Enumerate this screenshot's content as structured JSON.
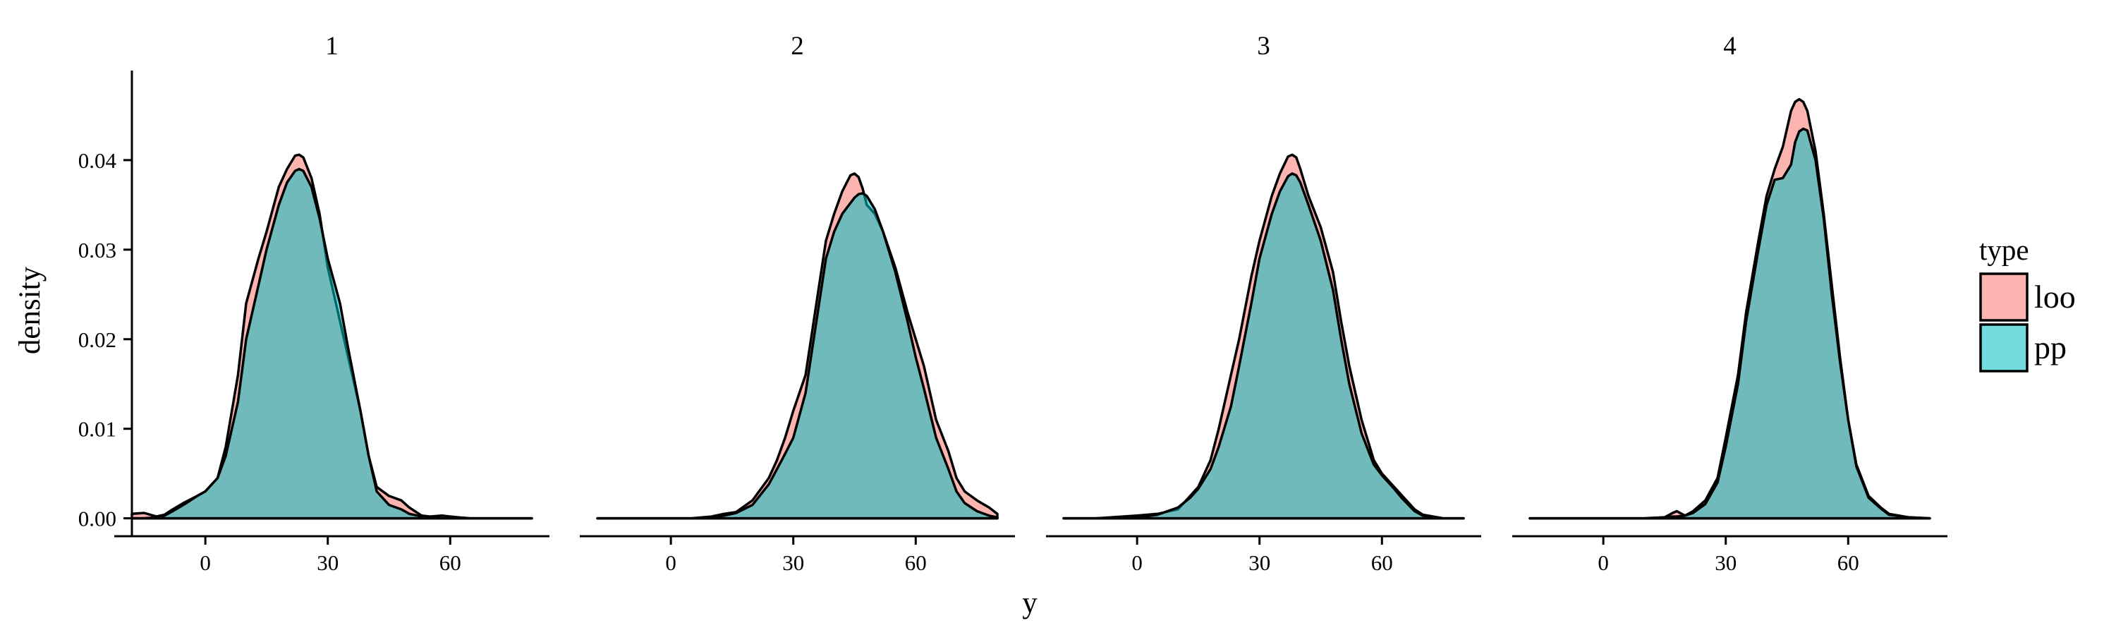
{
  "chart_data": {
    "type": "area",
    "title": "",
    "xlabel": "y",
    "ylabel": "density",
    "xlim": [
      -18,
      80
    ],
    "ylim": [
      -0.002,
      0.05
    ],
    "x_ticks": [
      0,
      30,
      60
    ],
    "y_ticks": [
      0.0,
      0.01,
      0.02,
      0.03,
      0.04
    ],
    "y_tick_labels": [
      "0.00",
      "0.01",
      "0.02",
      "0.03",
      "0.04"
    ],
    "grid": false,
    "legend": {
      "title": "type",
      "position": "right",
      "entries": [
        {
          "name": "loo",
          "color": "#F8766D"
        },
        {
          "name": "pp",
          "color": "#00BFC4"
        }
      ]
    },
    "fill_opacity": 0.55,
    "panels": [
      {
        "label": "1",
        "series": [
          {
            "name": "loo",
            "x": [
              -18,
              -15,
              -12,
              -10,
              -8,
              -5,
              -2,
              0,
              3,
              5,
              8,
              10,
              13,
              15,
              18,
              20,
              22,
              23,
              24,
              26,
              28,
              30,
              33,
              35,
              38,
              40,
              42,
              45,
              48,
              50,
              53,
              55,
              58,
              60,
              62,
              65,
              70,
              75,
              80
            ],
            "y": [
              0.0005,
              0.0006,
              0.0002,
              0.0004,
              0.001,
              0.0018,
              0.0025,
              0.003,
              0.0045,
              0.008,
              0.016,
              0.024,
              0.029,
              0.032,
              0.037,
              0.039,
              0.0405,
              0.0406,
              0.0403,
              0.038,
              0.034,
              0.028,
              0.022,
              0.018,
              0.012,
              0.007,
              0.0035,
              0.0025,
              0.002,
              0.0012,
              0.0003,
              0.0002,
              0.0003,
              0.0002,
              0.0001,
              0.0,
              0.0,
              0.0,
              0.0
            ]
          },
          {
            "name": "pp",
            "x": [
              -18,
              -15,
              -12,
              -10,
              -8,
              -5,
              -2,
              0,
              3,
              5,
              8,
              10,
              13,
              15,
              18,
              20,
              22,
              23,
              24,
              26,
              28,
              30,
              33,
              35,
              38,
              40,
              42,
              45,
              48,
              50,
              53,
              55,
              58,
              60,
              62,
              65,
              70,
              75,
              80
            ],
            "y": [
              0.0,
              0.0,
              0.0001,
              0.0003,
              0.0008,
              0.0016,
              0.0025,
              0.003,
              0.0045,
              0.007,
              0.013,
              0.02,
              0.026,
              0.03,
              0.035,
              0.0375,
              0.0388,
              0.039,
              0.0388,
              0.037,
              0.0335,
              0.029,
              0.024,
              0.019,
              0.012,
              0.007,
              0.003,
              0.0015,
              0.001,
              0.0005,
              0.0002,
              0.0001,
              0.0,
              0.0,
              0.0,
              0.0,
              0.0,
              0.0,
              0.0
            ]
          }
        ]
      },
      {
        "label": "2",
        "series": [
          {
            "name": "loo",
            "x": [
              -18,
              -10,
              0,
              5,
              10,
              13,
              16,
              20,
              24,
              26,
              28,
              30,
              33,
              36,
              38,
              40,
              42,
              44,
              45,
              46,
              47,
              48,
              50,
              52,
              55,
              58,
              60,
              62,
              65,
              68,
              70,
              72,
              75,
              78,
              80
            ],
            "y": [
              0.0,
              0.0,
              0.0,
              0.0,
              0.0002,
              0.0005,
              0.0007,
              0.002,
              0.0045,
              0.0065,
              0.009,
              0.012,
              0.016,
              0.025,
              0.031,
              0.034,
              0.0365,
              0.0383,
              0.0385,
              0.0381,
              0.0368,
              0.035,
              0.034,
              0.032,
              0.028,
              0.023,
              0.02,
              0.017,
              0.011,
              0.0075,
              0.0045,
              0.003,
              0.002,
              0.0012,
              0.0005
            ]
          },
          {
            "name": "pp",
            "x": [
              -18,
              -10,
              0,
              5,
              10,
              13,
              16,
              20,
              24,
              26,
              28,
              30,
              33,
              36,
              38,
              40,
              42,
              44,
              45,
              46,
              47,
              48,
              50,
              52,
              55,
              58,
              60,
              62,
              65,
              68,
              70,
              72,
              75,
              78,
              80
            ],
            "y": [
              0.0,
              0.0,
              0.0,
              0.0,
              0.0001,
              0.0003,
              0.0006,
              0.0015,
              0.0038,
              0.0055,
              0.0072,
              0.009,
              0.014,
              0.023,
              0.029,
              0.032,
              0.034,
              0.0352,
              0.0358,
              0.0362,
              0.0363,
              0.036,
              0.0345,
              0.032,
              0.0275,
              0.022,
              0.018,
              0.0145,
              0.009,
              0.0055,
              0.003,
              0.0017,
              0.0008,
              0.0003,
              0.0001
            ]
          }
        ]
      },
      {
        "label": "3",
        "series": [
          {
            "name": "loo",
            "x": [
              -18,
              -10,
              0,
              5,
              10,
              13,
              15,
              18,
              20,
              23,
              25,
              28,
              30,
              33,
              35,
              37,
              38,
              39,
              40,
              42,
              45,
              48,
              50,
              52,
              55,
              58,
              60,
              63,
              65,
              68,
              70,
              75,
              80
            ],
            "y": [
              0.0,
              0.0,
              0.0003,
              0.0005,
              0.001,
              0.0025,
              0.0035,
              0.0065,
              0.01,
              0.016,
              0.02,
              0.027,
              0.031,
              0.036,
              0.0385,
              0.0404,
              0.0406,
              0.0403,
              0.039,
              0.036,
              0.0325,
              0.0275,
              0.022,
              0.017,
              0.011,
              0.0065,
              0.005,
              0.0035,
              0.0025,
              0.001,
              0.0004,
              0.0,
              0.0
            ]
          },
          {
            "name": "pp",
            "x": [
              -18,
              -10,
              0,
              5,
              10,
              13,
              15,
              18,
              20,
              23,
              25,
              28,
              30,
              33,
              35,
              37,
              38,
              39,
              40,
              42,
              45,
              48,
              50,
              52,
              55,
              58,
              60,
              63,
              65,
              68,
              70,
              75,
              80
            ],
            "y": [
              0.0,
              0.0,
              0.0001,
              0.0004,
              0.0012,
              0.0023,
              0.0033,
              0.0055,
              0.008,
              0.0125,
              0.017,
              0.024,
              0.029,
              0.034,
              0.0365,
              0.0382,
              0.0385,
              0.0383,
              0.0375,
              0.035,
              0.031,
              0.0255,
              0.02,
              0.015,
              0.0095,
              0.006,
              0.0048,
              0.0033,
              0.0022,
              0.0008,
              0.0003,
              0.0,
              0.0
            ]
          }
        ]
      },
      {
        "label": "4",
        "series": [
          {
            "name": "loo",
            "x": [
              -18,
              -5,
              5,
              10,
              15,
              17,
              18,
              20,
              22,
              25,
              28,
              30,
              33,
              35,
              38,
              40,
              42,
              44,
              46,
              47,
              48,
              49,
              50,
              52,
              54,
              56,
              58,
              60,
              62,
              65,
              68,
              70,
              75,
              80
            ],
            "y": [
              0.0,
              0.0,
              0.0,
              0.0,
              0.0001,
              0.0006,
              0.0008,
              0.0003,
              0.0008,
              0.002,
              0.0045,
              0.009,
              0.016,
              0.023,
              0.031,
              0.036,
              0.039,
              0.0415,
              0.0455,
              0.0465,
              0.0468,
              0.0465,
              0.0455,
              0.041,
              0.034,
              0.026,
              0.018,
              0.011,
              0.006,
              0.0025,
              0.0012,
              0.0005,
              0.0001,
              0.0
            ]
          },
          {
            "name": "pp",
            "x": [
              -18,
              -5,
              5,
              10,
              15,
              17,
              18,
              20,
              22,
              25,
              28,
              30,
              33,
              35,
              38,
              40,
              42,
              44,
              46,
              47,
              48,
              49,
              50,
              52,
              54,
              56,
              58,
              60,
              62,
              65,
              68,
              70,
              75,
              80
            ],
            "y": [
              0.0,
              0.0,
              0.0,
              0.0,
              0.0001,
              0.0002,
              0.0002,
              0.0003,
              0.0006,
              0.0016,
              0.004,
              0.008,
              0.015,
              0.022,
              0.03,
              0.035,
              0.0378,
              0.038,
              0.0395,
              0.042,
              0.0432,
              0.0435,
              0.0433,
              0.04,
              0.0335,
              0.025,
              0.0175,
              0.011,
              0.0058,
              0.0023,
              0.0011,
              0.0004,
              0.0001,
              0.0
            ]
          }
        ]
      }
    ]
  }
}
